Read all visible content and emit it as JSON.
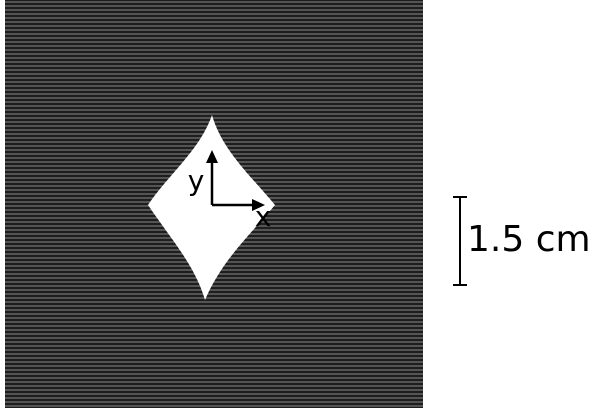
{
  "axes": {
    "y": "y",
    "x": "x"
  },
  "scale_bar": {
    "label": "1.5 cm"
  }
}
